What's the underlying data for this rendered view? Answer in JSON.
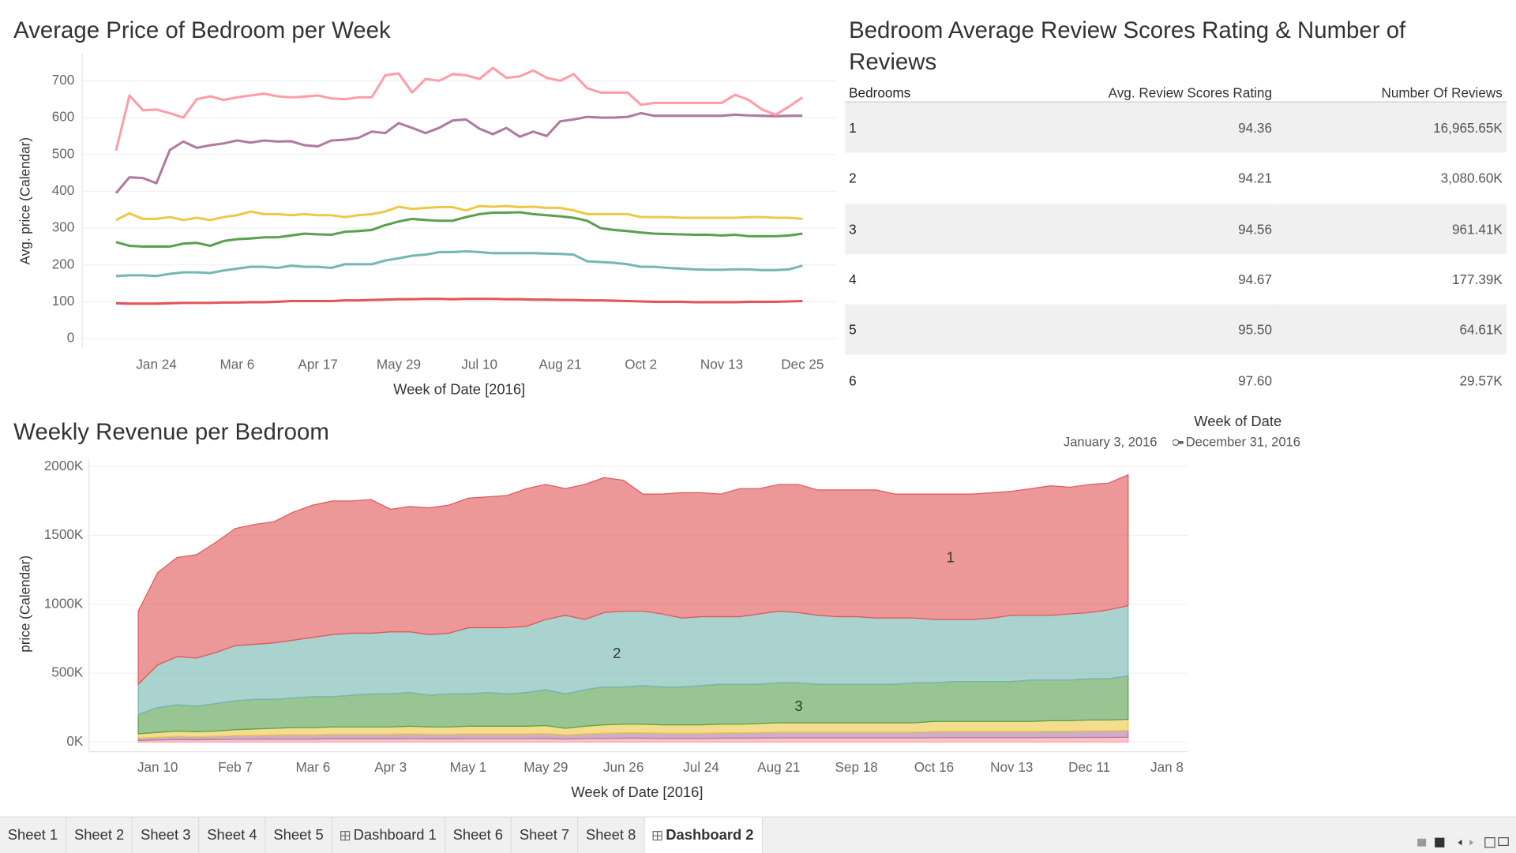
{
  "chart_data": [
    {
      "type": "line",
      "title": "Average Price of Bedroom per Week",
      "x_label": "Week of Date [2016]",
      "y_label": "Avg. price (Calendar)",
      "x": [
        "2016-01-03",
        "2016-01-10",
        "2016-01-17",
        "2016-01-24",
        "2016-01-31",
        "2016-02-07",
        "2016-02-14",
        "2016-02-21",
        "2016-02-28",
        "2016-03-06",
        "2016-03-13",
        "2016-03-20",
        "2016-03-27",
        "2016-04-03",
        "2016-04-10",
        "2016-04-17",
        "2016-04-24",
        "2016-05-01",
        "2016-05-08",
        "2016-05-15",
        "2016-05-22",
        "2016-05-29",
        "2016-06-05",
        "2016-06-12",
        "2016-06-19",
        "2016-06-26",
        "2016-07-03",
        "2016-07-10",
        "2016-07-17",
        "2016-07-24",
        "2016-07-31",
        "2016-08-07",
        "2016-08-14",
        "2016-08-21",
        "2016-08-28",
        "2016-09-04",
        "2016-09-11",
        "2016-09-18",
        "2016-09-25",
        "2016-10-02",
        "2016-10-09",
        "2016-10-16",
        "2016-10-23",
        "2016-10-30",
        "2016-11-06",
        "2016-11-13",
        "2016-11-20",
        "2016-11-27",
        "2016-12-04",
        "2016-12-11",
        "2016-12-18",
        "2016-12-25"
      ],
      "xlim": [
        "2016-01-03",
        "2016-12-25"
      ],
      "xticks": [
        {
          "value": "2016-01-24",
          "label": "Jan 24"
        },
        {
          "value": "2016-03-06",
          "label": "Mar 6"
        },
        {
          "value": "2016-04-17",
          "label": "Apr 17"
        },
        {
          "value": "2016-05-29",
          "label": "May 29"
        },
        {
          "value": "2016-07-10",
          "label": "Jul 10"
        },
        {
          "value": "2016-08-21",
          "label": "Aug 21"
        },
        {
          "value": "2016-10-02",
          "label": "Oct 2"
        },
        {
          "value": "2016-11-13",
          "label": "Nov 13"
        },
        {
          "value": "2016-12-25",
          "label": "Dec 25"
        }
      ],
      "ylim": [
        -25,
        775
      ],
      "yticks": [
        0,
        100,
        200,
        300,
        400,
        500,
        600,
        700
      ],
      "grid": true,
      "series": [
        {
          "color": "#e15759",
          "values": [
            96,
            95,
            95,
            95,
            96,
            97,
            97,
            97,
            98,
            98,
            99,
            99,
            100,
            102,
            102,
            102,
            102,
            104,
            104,
            105,
            106,
            107,
            107,
            108,
            108,
            107,
            108,
            108,
            108,
            107,
            107,
            106,
            106,
            105,
            105,
            104,
            104,
            103,
            102,
            101,
            100,
            100,
            100,
            99,
            99,
            99,
            99,
            100,
            100,
            100,
            101,
            102
          ]
        },
        {
          "color": "#76b7b2",
          "values": [
            170,
            172,
            172,
            170,
            176,
            180,
            180,
            178,
            185,
            190,
            195,
            195,
            192,
            198,
            195,
            195,
            192,
            202,
            202,
            202,
            212,
            218,
            225,
            228,
            235,
            235,
            237,
            235,
            232,
            232,
            232,
            232,
            231,
            230,
            228,
            210,
            208,
            206,
            202,
            195,
            195,
            192,
            190,
            188,
            187,
            187,
            188,
            188,
            186,
            186,
            188,
            198
          ]
        },
        {
          "color": "#59a14f",
          "values": [
            262,
            252,
            250,
            250,
            250,
            258,
            260,
            252,
            265,
            270,
            272,
            275,
            275,
            280,
            285,
            283,
            282,
            290,
            292,
            295,
            308,
            318,
            325,
            322,
            320,
            320,
            330,
            338,
            342,
            342,
            343,
            338,
            335,
            332,
            328,
            320,
            300,
            295,
            292,
            288,
            285,
            284,
            283,
            282,
            282,
            280,
            282,
            278,
            278,
            278,
            280,
            285
          ]
        },
        {
          "color": "#edc948",
          "values": [
            322,
            340,
            325,
            325,
            330,
            322,
            328,
            322,
            330,
            335,
            345,
            338,
            338,
            335,
            338,
            335,
            335,
            330,
            335,
            338,
            345,
            358,
            352,
            355,
            357,
            357,
            348,
            360,
            358,
            360,
            357,
            358,
            355,
            355,
            348,
            338,
            338,
            338,
            338,
            330,
            330,
            330,
            328,
            328,
            328,
            328,
            328,
            330,
            330,
            328,
            328,
            325
          ]
        },
        {
          "color": "#b07aa1",
          "values": [
            395,
            438,
            436,
            422,
            512,
            535,
            518,
            525,
            530,
            538,
            532,
            538,
            535,
            536,
            525,
            522,
            538,
            540,
            545,
            562,
            558,
            585,
            572,
            558,
            572,
            592,
            595,
            570,
            555,
            572,
            548,
            562,
            550,
            590,
            595,
            602,
            600,
            600,
            602,
            612,
            605,
            605,
            605,
            605,
            605,
            605,
            608,
            606,
            605,
            604,
            605,
            605
          ]
        },
        {
          "color": "#ff9da7",
          "values": [
            510,
            660,
            620,
            622,
            612,
            600,
            650,
            658,
            648,
            655,
            660,
            665,
            658,
            655,
            657,
            660,
            652,
            650,
            655,
            655,
            715,
            720,
            668,
            705,
            700,
            718,
            715,
            705,
            735,
            708,
            712,
            728,
            708,
            700,
            718,
            680,
            668,
            668,
            668,
            635,
            640,
            640,
            640,
            640,
            640,
            640,
            662,
            648,
            622,
            608,
            630,
            655
          ]
        }
      ]
    },
    {
      "type": "area",
      "stacked": true,
      "title": "Weekly Revenue per Bedroom",
      "x_label": "Week of Date [2016]",
      "y_label": "price (Calendar)",
      "x": [
        "2016-01-03",
        "2016-01-10",
        "2016-01-17",
        "2016-01-24",
        "2016-01-31",
        "2016-02-07",
        "2016-02-14",
        "2016-02-21",
        "2016-02-28",
        "2016-03-06",
        "2016-03-13",
        "2016-03-20",
        "2016-03-27",
        "2016-04-03",
        "2016-04-10",
        "2016-04-17",
        "2016-04-24",
        "2016-05-01",
        "2016-05-08",
        "2016-05-15",
        "2016-05-22",
        "2016-05-29",
        "2016-06-05",
        "2016-06-12",
        "2016-06-19",
        "2016-06-26",
        "2016-07-03",
        "2016-07-10",
        "2016-07-17",
        "2016-07-24",
        "2016-07-31",
        "2016-08-07",
        "2016-08-14",
        "2016-08-21",
        "2016-08-28",
        "2016-09-04",
        "2016-09-11",
        "2016-09-18",
        "2016-09-25",
        "2016-10-02",
        "2016-10-09",
        "2016-10-16",
        "2016-10-23",
        "2016-10-30",
        "2016-11-06",
        "2016-11-13",
        "2016-11-20",
        "2016-11-27",
        "2016-12-04",
        "2016-12-11",
        "2016-12-18",
        "2016-12-25"
      ],
      "xlim": [
        "2016-01-03",
        "2017-01-08"
      ],
      "xticks": [
        {
          "value": "2016-01-10",
          "label": "Jan 10"
        },
        {
          "value": "2016-02-07",
          "label": "Feb 7"
        },
        {
          "value": "2016-03-06",
          "label": "Mar 6"
        },
        {
          "value": "2016-04-03",
          "label": "Apr 3"
        },
        {
          "value": "2016-05-01",
          "label": "May 1"
        },
        {
          "value": "2016-05-29",
          "label": "May 29"
        },
        {
          "value": "2016-06-26",
          "label": "Jun 26"
        },
        {
          "value": "2016-07-24",
          "label": "Jul 24"
        },
        {
          "value": "2016-08-21",
          "label": "Aug 21"
        },
        {
          "value": "2016-09-18",
          "label": "Sep 18"
        },
        {
          "value": "2016-10-16",
          "label": "Oct 16"
        },
        {
          "value": "2016-11-13",
          "label": "Nov 13"
        },
        {
          "value": "2016-12-11",
          "label": "Dec 11"
        },
        {
          "value": "2017-01-08",
          "label": "Jan 8"
        }
      ],
      "ylim": [
        -70000,
        2055000
      ],
      "yticks": [
        {
          "value": 0,
          "label": "0K"
        },
        {
          "value": 500000,
          "label": "500K"
        },
        {
          "value": 1000000,
          "label": "1000K"
        },
        {
          "value": 1500000,
          "label": "1500K"
        },
        {
          "value": 2000000,
          "label": "2000K"
        }
      ],
      "grid": true,
      "series": [
        {
          "name": "1",
          "color": "#e15759",
          "values": [
            530000,
            670000,
            720000,
            750000,
            800000,
            850000,
            870000,
            880000,
            930000,
            960000,
            970000,
            960000,
            970000,
            890000,
            910000,
            920000,
            930000,
            940000,
            950000,
            960000,
            1000000,
            980000,
            920000,
            980000,
            980000,
            950000,
            850000,
            870000,
            910000,
            900000,
            890000,
            930000,
            910000,
            920000,
            930000,
            910000,
            920000,
            920000,
            930000,
            900000,
            900000,
            910000,
            910000,
            910000,
            910000,
            900000,
            920000,
            940000,
            920000,
            930000,
            920000,
            950000
          ]
        },
        {
          "name": "2",
          "color": "#76b7b2",
          "values": [
            220000,
            310000,
            350000,
            350000,
            370000,
            400000,
            400000,
            410000,
            420000,
            430000,
            450000,
            450000,
            440000,
            450000,
            440000,
            440000,
            440000,
            480000,
            470000,
            480000,
            480000,
            510000,
            570000,
            510000,
            540000,
            550000,
            540000,
            530000,
            500000,
            500000,
            490000,
            490000,
            510000,
            520000,
            510000,
            500000,
            490000,
            490000,
            480000,
            480000,
            470000,
            460000,
            450000,
            450000,
            460000,
            480000,
            470000,
            470000,
            480000,
            480000,
            500000,
            510000
          ]
        },
        {
          "name": "3",
          "color": "#59a14f",
          "values": [
            140000,
            180000,
            190000,
            185000,
            200000,
            210000,
            215000,
            210000,
            215000,
            225000,
            220000,
            230000,
            240000,
            240000,
            245000,
            230000,
            240000,
            235000,
            245000,
            235000,
            245000,
            260000,
            250000,
            265000,
            275000,
            270000,
            280000,
            275000,
            275000,
            285000,
            290000,
            290000,
            285000,
            290000,
            290000,
            280000,
            280000,
            280000,
            280000,
            280000,
            290000,
            280000,
            290000,
            290000,
            290000,
            290000,
            300000,
            295000,
            295000,
            300000,
            300000,
            315000
          ]
        },
        {
          "color": "#edc948",
          "values": [
            30000,
            35000,
            38000,
            36000,
            38000,
            43000,
            47000,
            48000,
            52000,
            52000,
            53000,
            53000,
            53000,
            53000,
            56000,
            53000,
            53000,
            56000,
            56000,
            56000,
            56000,
            58000,
            48000,
            56000,
            61000,
            63000,
            63000,
            61000,
            61000,
            61000,
            63000,
            63000,
            66000,
            68000,
            68000,
            68000,
            68000,
            68000,
            68000,
            68000,
            68000,
            73000,
            73000,
            73000,
            73000,
            73000,
            73000,
            76000,
            76000,
            78000,
            78000,
            80000
          ]
        },
        {
          "color": "#b07aa1",
          "values": [
            18000,
            20000,
            24000,
            22000,
            24000,
            27000,
            28000,
            30000,
            31000,
            31000,
            33000,
            33000,
            33000,
            33000,
            34000,
            33000,
            33000,
            34000,
            34000,
            34000,
            34000,
            36000,
            30000,
            34000,
            37000,
            39000,
            39000,
            37000,
            37000,
            37000,
            39000,
            39000,
            40000,
            42000,
            42000,
            42000,
            42000,
            42000,
            42000,
            42000,
            42000,
            45000,
            45000,
            45000,
            45000,
            45000,
            45000,
            46000,
            46000,
            48000,
            48000,
            50000
          ]
        },
        {
          "color": "#ff9da7",
          "values": [
            12000,
            15000,
            18000,
            17000,
            18000,
            20000,
            20000,
            22000,
            22000,
            22000,
            24000,
            24000,
            24000,
            24000,
            25000,
            24000,
            24000,
            25000,
            25000,
            25000,
            25000,
            26000,
            22000,
            25000,
            27000,
            28000,
            28000,
            27000,
            27000,
            27000,
            28000,
            28000,
            29000,
            30000,
            30000,
            30000,
            30000,
            30000,
            30000,
            30000,
            30000,
            32000,
            32000,
            32000,
            32000,
            32000,
            32000,
            33000,
            33000,
            34000,
            34000,
            35000
          ]
        }
      ]
    }
  ],
  "table": {
    "title": "Bedroom Average Review Scores Rating & Number of Reviews",
    "columns": [
      "Bedrooms",
      "Avg. Review Scores Rating",
      "Number Of Reviews"
    ],
    "rows": [
      [
        "1",
        "94.36",
        "16,965.65K"
      ],
      [
        "2",
        "94.21",
        "3,080.60K"
      ],
      [
        "3",
        "94.56",
        "961.41K"
      ],
      [
        "4",
        "94.67",
        "177.39K"
      ],
      [
        "5",
        "95.50",
        "64.61K"
      ],
      [
        "6",
        "97.60",
        "29.57K"
      ]
    ]
  },
  "filter": {
    "title": "Week of Date",
    "start": "January 3, 2016",
    "end": "December 31, 2016"
  },
  "tabs": [
    {
      "label": "Sheet 1"
    },
    {
      "label": "Sheet 2"
    },
    {
      "label": "Sheet 3"
    },
    {
      "label": "Sheet 4"
    },
    {
      "label": "Sheet 5"
    },
    {
      "label": "Dashboard 1",
      "dashboard": true
    },
    {
      "label": "Sheet 6"
    },
    {
      "label": "Sheet 7"
    },
    {
      "label": "Sheet 8"
    },
    {
      "label": "Dashboard 2",
      "dashboard": true,
      "active": true
    }
  ]
}
